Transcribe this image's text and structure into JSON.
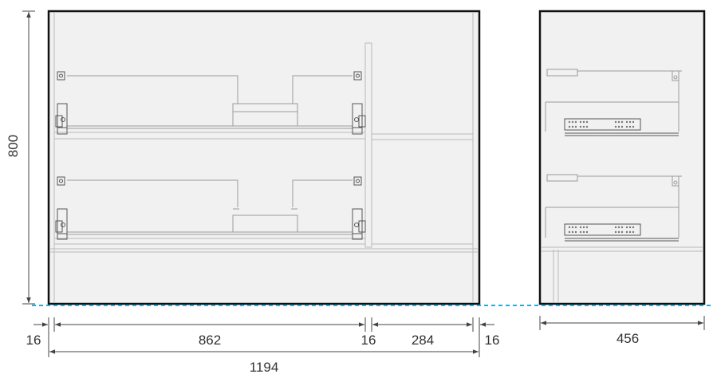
{
  "drawing": {
    "front_view": {
      "height_label": "800",
      "width_labels": [
        "16",
        "862",
        "16",
        "284",
        "16"
      ],
      "total_width_label": "1194"
    },
    "side_view": {
      "depth_label": "456"
    },
    "colors": {
      "frame": "#111111",
      "panel": "#f1f1f1",
      "floor_line": "#2aa7de",
      "dimension_line": "#444444",
      "hardware": "#9a9a9a"
    }
  }
}
